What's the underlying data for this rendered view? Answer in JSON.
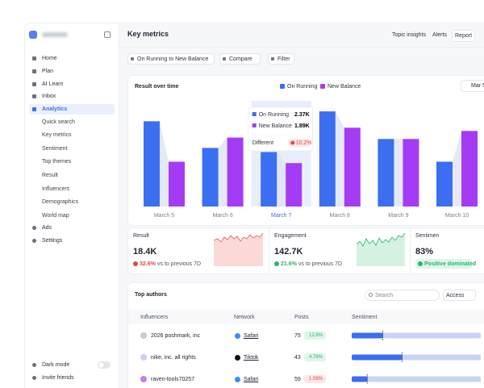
{
  "sidebar": {
    "nav": [
      "Home",
      "Plan",
      "AI Learn",
      "Inbox",
      "Analytics"
    ],
    "analytics_sub": [
      "Quick search",
      "Key metrics",
      "Sentiment",
      "Top themes",
      "Result",
      "Influencers",
      "Demographics",
      "World map"
    ],
    "nav2": [
      "Ads",
      "Settings"
    ],
    "footer": [
      "Dark mode",
      "Invite friends"
    ]
  },
  "header": {
    "title": "Key metrics",
    "actions": [
      "Topic insights",
      "Alerts",
      "Report"
    ]
  },
  "filters": [
    "On Running to New Balance",
    "Compare",
    "Filter"
  ],
  "chart_data": {
    "type": "bar",
    "title": "Result over time",
    "date_button": "Mar 5",
    "categories": [
      "March 5",
      "March 6",
      "March 7",
      "March 8",
      "March 9",
      "March 10"
    ],
    "series": [
      {
        "name": "On Running",
        "color": "#3b6ef0",
        "values": [
          3.71,
          2.55,
          2.37,
          4.14,
          2.94,
          1.95
        ]
      },
      {
        "name": "New Balance",
        "color": "#a53cf5",
        "values": [
          1.95,
          3.0,
          1.89,
          3.43,
          2.94,
          3.29
        ]
      }
    ],
    "ylim": [
      0,
      4.6
    ],
    "highlight_index": 2
  },
  "tooltip": {
    "values": [
      "2.37K",
      "1.89K"
    ],
    "diff_label": "Different",
    "diff": "10.2%"
  },
  "metrics": [
    {
      "label": "Result",
      "value": "18.4K",
      "change": "32.6%",
      "trend": "down",
      "note": "vs to previous 7D"
    },
    {
      "label": "Engagement",
      "value": "142.7K",
      "change": "21.6%",
      "trend": "up",
      "note": "vs to previous 7D"
    },
    {
      "label": "Sentimen",
      "value": "83%",
      "note": "Positive dominated"
    }
  ],
  "authors": {
    "title": "Top authors",
    "search": "Search",
    "access": "Access",
    "headers": [
      "Influencers",
      "Network",
      "Posts",
      "Sentiment"
    ],
    "rows": [
      {
        "name": "2026 poshmark, inc",
        "network": "Safari",
        "posts": "75",
        "change": "12.8%",
        "trend": "up",
        "sentiment": 24
      },
      {
        "name": "nike, inc. all rights",
        "network": "Tiktok",
        "posts": "43",
        "change": "4.76%",
        "trend": "up",
        "sentiment": 39
      },
      {
        "name": "raven-tools70257",
        "network": "Safari",
        "posts": "59",
        "change": "1.08%",
        "trend": "down",
        "sentiment": 12
      }
    ]
  }
}
